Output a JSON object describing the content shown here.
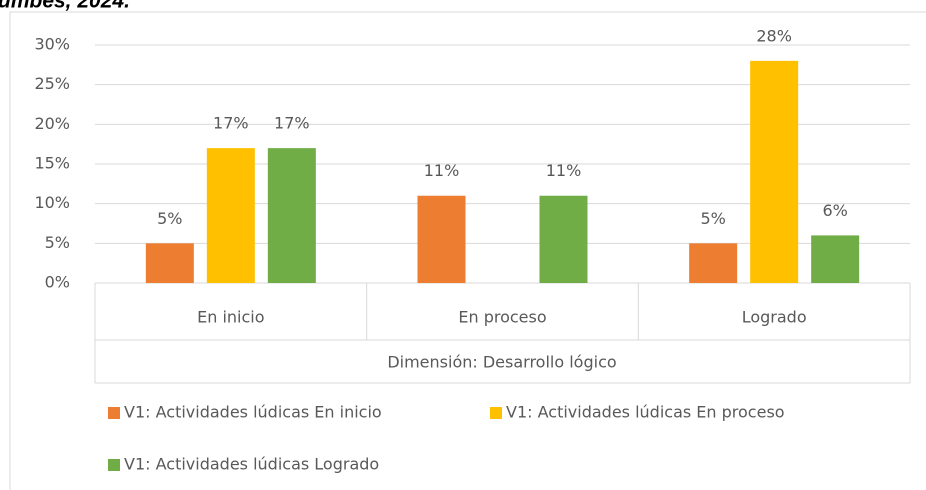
{
  "chart_data": {
    "type": "bar",
    "title": "umbes, 2024.",
    "categories": [
      "En inicio",
      "En proceso",
      "Logrado"
    ],
    "xlabel": "Dimensión: Desarrollo lógico",
    "series": [
      {
        "name": "V1: Actividades lúdicas En inicio",
        "color": "#ed7d31",
        "values": [
          5,
          11,
          5
        ],
        "value_labels": [
          "5%",
          "11%",
          "5%"
        ]
      },
      {
        "name": "V1: Actividades lúdicas En proceso",
        "color": "#ffc000",
        "values": [
          17,
          null,
          28
        ],
        "value_labels": [
          "17%",
          null,
          "28%"
        ]
      },
      {
        "name": "V1: Actividades lúdicas Logrado",
        "color": "#70ad47",
        "values": [
          17,
          11,
          6
        ],
        "value_labels": [
          "17%",
          "11%",
          "6%"
        ]
      }
    ],
    "ylim": [
      0,
      30
    ],
    "yticks": [
      {
        "value": 0,
        "label": "0%"
      },
      {
        "value": 5,
        "label": "5%"
      },
      {
        "value": 10,
        "label": "10%"
      },
      {
        "value": 15,
        "label": "15%"
      },
      {
        "value": 20,
        "label": "20%"
      },
      {
        "value": 25,
        "label": "25%"
      },
      {
        "value": 30,
        "label": "30%"
      }
    ],
    "grid": true,
    "legend": "bottom"
  }
}
